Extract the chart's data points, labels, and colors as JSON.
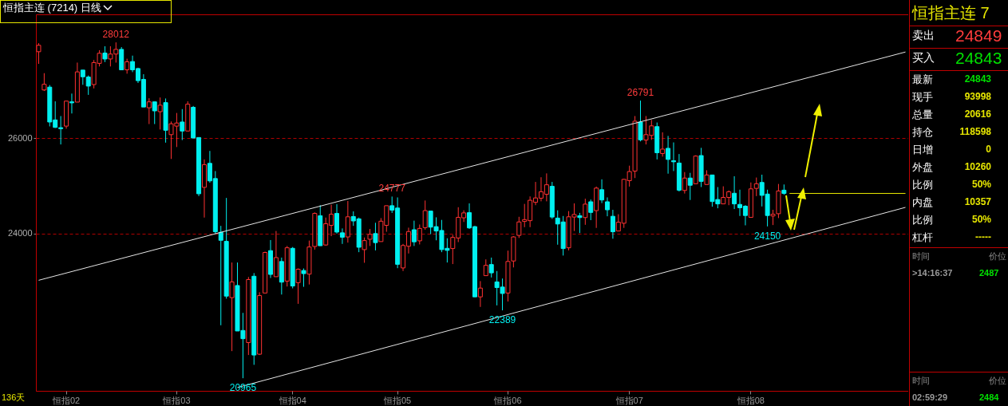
{
  "chart_data": [
    {
      "type": "candlestick",
      "title": "恒指主连 (7214) 日线",
      "annotations": [
        {
          "text": "28012",
          "y": 28012
        },
        {
          "text": "24777",
          "y": 24777
        },
        {
          "text": "26791",
          "y": 26791
        },
        {
          "text": "22389",
          "y": 22389
        },
        {
          "text": "24150",
          "y": 24150
        },
        {
          "text": "20965",
          "y": 20965
        },
        "136天"
      ],
      "categories": [
        null,
        null,
        null,
        null,
        null,
        "恒指02",
        null,
        null,
        null,
        null,
        null,
        null,
        null,
        null,
        null,
        null,
        null,
        null,
        null,
        null,
        null,
        null,
        null,
        null,
        null,
        "恒指03",
        null,
        null,
        null,
        null,
        null,
        null,
        null,
        null,
        null,
        null,
        null,
        null,
        null,
        null,
        null,
        null,
        null,
        null,
        null,
        null,
        "恒指04",
        null,
        null,
        null,
        null,
        null,
        null,
        null,
        null,
        null,
        null,
        null,
        null,
        null,
        null,
        null,
        null,
        null,
        null,
        "恒指05",
        null,
        null,
        null,
        null,
        null,
        null,
        null,
        null,
        null,
        null,
        null,
        null,
        null,
        null,
        null,
        null,
        null,
        null,
        null,
        "恒指06",
        null,
        null,
        null,
        null,
        null,
        null,
        null,
        null,
        null,
        null,
        null,
        null,
        null,
        null,
        null,
        null,
        null,
        null,
        null,
        null,
        null,
        "恒指07",
        null,
        null,
        null,
        null,
        null,
        null,
        null,
        null,
        null,
        null,
        null,
        null,
        null,
        null,
        null,
        null,
        null,
        null,
        null,
        null,
        null,
        "恒指08",
        null,
        null,
        null,
        null,
        null,
        null,
        null,
        null,
        null,
        null,
        null,
        null,
        null,
        null,
        null,
        null,
        null,
        null,
        null,
        null,
        null,
        null,
        null,
        null,
        null,
        null,
        null,
        null
      ],
      "ylim": [
        20700,
        28600
      ],
      "yticks": [
        24000,
        26000
      ],
      "grid": "y",
      "ref_lines": [
        {
          "axis": "y",
          "value": 24843,
          "color": "#e8e800"
        }
      ],
      "series": [
        {
          "type": "candlestick",
          "ohlc": [
            [
              27816,
              27995,
              27561,
              27951
            ],
            [
              27014,
              27366,
              26992,
              27133
            ],
            [
              27073,
              27117,
              26249,
              26341
            ],
            [
              26385,
              26775,
              26217,
              26228
            ],
            [
              26222,
              26466,
              25870,
              26201
            ],
            [
              26255,
              26780,
              26201,
              26780
            ],
            [
              26764,
              26938,
              26520,
              26743
            ],
            [
              26759,
              27588,
              26759,
              27393
            ],
            [
              27431,
              27431,
              27122,
              27290
            ],
            [
              27285,
              27317,
              26911,
              27095
            ],
            [
              27127,
              27642,
              27046,
              27588
            ],
            [
              27572,
              27848,
              27507,
              27783
            ],
            [
              27789,
              27930,
              27599,
              27664
            ],
            [
              27664,
              27930,
              27507,
              27767
            ],
            [
              27767,
              28012,
              27588,
              27865
            ],
            [
              27865,
              27913,
              27436,
              27436
            ],
            [
              27436,
              27669,
              27355,
              27604
            ],
            [
              27610,
              27734,
              27388,
              27436
            ],
            [
              27463,
              27480,
              27160,
              27209
            ],
            [
              27236,
              27344,
              26656,
              26656
            ],
            [
              26640,
              26840,
              26298,
              26764
            ],
            [
              26764,
              26764,
              26298,
              26575
            ],
            [
              26558,
              26856,
              26184,
              26694
            ],
            [
              26748,
              26835,
              25908,
              26168
            ],
            [
              26076,
              26352,
              25566,
              26304
            ],
            [
              26255,
              26531,
              25816,
              26320
            ],
            [
              26341,
              26612,
              25962,
              26152
            ],
            [
              26152,
              26775,
              26152,
              26715
            ],
            [
              26650,
              26678,
              26005,
              26005
            ],
            [
              26016,
              26016,
              24786,
              24835
            ],
            [
              24970,
              25556,
              24336,
              25447
            ],
            [
              25474,
              25734,
              25068,
              25106
            ],
            [
              25155,
              25312,
              23995,
              24038
            ],
            [
              24027,
              24162,
              22076,
              23859
            ],
            [
              23837,
              24748,
              22634,
              22688
            ],
            [
              22656,
              23393,
              21534,
              22986
            ],
            [
              22910,
              23393,
              21956,
              21956
            ],
            [
              21967,
              22336,
              20965,
              21794
            ],
            [
              21713,
              23089,
              21452,
              23035
            ],
            [
              23105,
              23171,
              21246,
              21452
            ],
            [
              21469,
              22769,
              21452,
              22699
            ],
            [
              22753,
              23620,
              22753,
              23604
            ],
            [
              23642,
              23864,
              23068,
              23143
            ],
            [
              23095,
              24054,
              23095,
              23496
            ],
            [
              23414,
              23496,
              22721,
              22981
            ],
            [
              23003,
              23740,
              22889,
              23702
            ],
            [
              23691,
              23718,
              22851,
              22900
            ],
            [
              22970,
              23268,
              22526,
              23252
            ],
            [
              23225,
              23268,
              22883,
              23160
            ],
            [
              23149,
              23853,
              22932,
              23718
            ],
            [
              23729,
              24444,
              23664,
              24423
            ],
            [
              24374,
              24596,
              23745,
              23745
            ],
            [
              23761,
              24336,
              23745,
              24206
            ],
            [
              24173,
              24607,
              23946,
              24406
            ],
            [
              24423,
              24618,
              24000,
              24032
            ],
            [
              24016,
              24108,
              23783,
              23924
            ],
            [
              23929,
              24683,
              23810,
              24352
            ],
            [
              24358,
              24466,
              24162,
              24265
            ],
            [
              24309,
              24336,
              23610,
              23713
            ],
            [
              23664,
              23918,
              23387,
              23853
            ],
            [
              23881,
              24097,
              23740,
              23984
            ],
            [
              24000,
              24227,
              23647,
              23810
            ],
            [
              23832,
              24325,
              23832,
              24260
            ],
            [
              24173,
              24585,
              24038,
              24585
            ],
            [
              24585,
              24777,
              24433,
              24493
            ],
            [
              24536,
              24759,
              23274,
              23355
            ],
            [
              23279,
              23783,
              23214,
              23750
            ],
            [
              23734,
              24124,
              23582,
              24043
            ],
            [
              24081,
              24271,
              23740,
              23827
            ],
            [
              23848,
              24190,
              23772,
              24108
            ],
            [
              24125,
              24694,
              24081,
              24482
            ],
            [
              24472,
              24472,
              23989,
              24135
            ],
            [
              24146,
              24341,
              23859,
              24054
            ],
            [
              24065,
              24287,
              23610,
              23664
            ],
            [
              23691,
              23902,
              23393,
              23648
            ],
            [
              23686,
              23973,
              23360,
              23919
            ],
            [
              23908,
              24553,
              23821,
              24341
            ],
            [
              24331,
              24488,
              24244,
              24434
            ],
            [
              24439,
              24634,
              24098,
              24119
            ],
            [
              24146,
              24163,
              22672,
              22672
            ],
            [
              22672,
              23003,
              22461,
              22856
            ],
            [
              23117,
              23458,
              23117,
              23333
            ],
            [
              23350,
              23496,
              23079,
              23176
            ],
            [
              22986,
              23214,
              22493,
              22867
            ],
            [
              22878,
              23057,
              22389,
              22743
            ],
            [
              22753,
              23642,
              22575,
              23415
            ],
            [
              23425,
              23946,
              23290,
              23930
            ],
            [
              23962,
              24352,
              23908,
              24244
            ],
            [
              24255,
              24623,
              24135,
              24293
            ],
            [
              24271,
              24780,
              24135,
              24699
            ],
            [
              24656,
              25084,
              24596,
              24748
            ],
            [
              24743,
              25182,
              24677,
              24878
            ],
            [
              24824,
              25263,
              24677,
              25024
            ],
            [
              24992,
              25084,
              24309,
              24347
            ],
            [
              24325,
              24488,
              23767,
              24201
            ],
            [
              24244,
              24369,
              23539,
              23686
            ],
            [
              23702,
              24472,
              23648,
              24352
            ],
            [
              24347,
              24634,
              24054,
              24401
            ],
            [
              24374,
              24434,
              24011,
              24336
            ],
            [
              24336,
              24732,
              24184,
              24618
            ],
            [
              24667,
              24715,
              24282,
              24444
            ],
            [
              24482,
              24986,
              24119,
              24954
            ],
            [
              24921,
              25138,
              24640,
              24705
            ],
            [
              24667,
              24759,
              24363,
              24499
            ],
            [
              24363,
              24499,
              23892,
              24038
            ],
            [
              24054,
              24406,
              24054,
              24238
            ],
            [
              24217,
              25149,
              24119,
              25138
            ],
            [
              25111,
              25425,
              24986,
              25301
            ],
            [
              25312,
              26466,
              25165,
              26358
            ],
            [
              26341,
              26791,
              25935,
              25967
            ],
            [
              25962,
              26466,
              25870,
              26076
            ],
            [
              26060,
              26385,
              25967,
              26260
            ],
            [
              26244,
              26331,
              25556,
              25696
            ],
            [
              25680,
              26125,
              25615,
              25772
            ],
            [
              25789,
              26049,
              25257,
              25556
            ],
            [
              25528,
              25913,
              25312,
              25507
            ],
            [
              25480,
              25669,
              24883,
              24911
            ],
            [
              24905,
              25290,
              24840,
              25165
            ],
            [
              25165,
              25274,
              24705,
              25014
            ],
            [
              25046,
              25642,
              25046,
              25626
            ],
            [
              25637,
              25799,
              24976,
              25095
            ],
            [
              25030,
              25328,
              25030,
              25230
            ],
            [
              25230,
              25230,
              24564,
              24672
            ],
            [
              24715,
              24976,
              24531,
              24623
            ],
            [
              24623,
              24992,
              24623,
              24759
            ],
            [
              24759,
              24905,
              24596,
              24878
            ],
            [
              24846,
              25203,
              24515,
              24623
            ],
            [
              24612,
              24921,
              24369,
              24542
            ],
            [
              24575,
              24596,
              24173,
              24379
            ],
            [
              24341,
              25073,
              24341,
              24938
            ],
            [
              24948,
              25176,
              24786,
              25046
            ],
            [
              25073,
              25236,
              24569,
              24802
            ],
            [
              24829,
              24921,
              24150,
              24379
            ],
            [
              24369,
              24499,
              24179,
              24406
            ],
            [
              24417,
              25041,
              24325,
              24894
            ],
            [
              24911,
              25030,
              24813,
              24843
            ],
            null,
            null,
            null,
            null,
            null,
            null,
            null,
            null,
            null,
            null,
            null,
            null,
            null,
            null,
            null,
            null,
            null,
            null,
            null,
            null,
            null,
            null
          ],
          "colors": [
            "#ff3232",
            "#ff3232",
            "#00f0f0",
            "#00f0f0",
            "#00f0f0",
            "#ff3232",
            "#00f0f0",
            "#ff3232",
            "#00f0f0",
            "#00f0f0",
            "#ff3232",
            "#ff3232",
            "#00f0f0",
            "#ff3232",
            "#ff3232",
            "#00f0f0",
            "#ff3232",
            "#00f0f0",
            "#00f0f0",
            "#00f0f0",
            "#ff3232",
            "#00f0f0",
            "#ff3232",
            "#00f0f0",
            "#ff3232",
            "#ff3232",
            "#00f0f0",
            "#ff3232",
            "#00f0f0",
            "#00f0f0",
            "#ff3232",
            "#00f0f0",
            "#00f0f0",
            "#00f0f0",
            "#00f0f0",
            "#ff3232",
            "#00f0f0",
            "#00f0f0",
            "#ff3232",
            "#00f0f0",
            "#ff3232",
            "#ff3232",
            "#00f0f0",
            "#ff3232",
            "#00f0f0",
            "#ff3232",
            "#00f0f0",
            "#ff3232",
            "#00f0f0",
            "#ff3232",
            "#ff3232",
            "#00f0f0",
            "#ff3232",
            "#ff3232",
            "#00f0f0",
            "#00f0f0",
            "#ff3232",
            "#00f0f0",
            "#00f0f0",
            "#ff3232",
            "#ff3232",
            "#00f0f0",
            "#ff3232",
            "#ff3232",
            "#00f0f0",
            "#00f0f0",
            "#ff3232",
            "#ff3232",
            "#00f0f0",
            "#ff3232",
            "#ff3232",
            "#00f0f0",
            "#00f0f0",
            "#00f0f0",
            "#00f0f0",
            "#ff3232",
            "#ff3232",
            "#ff3232",
            "#00f0f0",
            "#00f0f0",
            "#ff3232",
            "#ff3232",
            "#00f0f0",
            "#00f0f0",
            "#00f0f0",
            "#ff3232",
            "#ff3232",
            "#ff3232",
            "#ff3232",
            "#ff3232",
            "#ff3232",
            "#ff3232",
            "#ff3232",
            "#00f0f0",
            "#00f0f0",
            "#00f0f0",
            "#ff3232",
            "#ff3232",
            "#00f0f0",
            "#ff3232",
            "#00f0f0",
            "#ff3232",
            "#00f0f0",
            "#00f0f0",
            "#00f0f0",
            "#ff3232",
            "#ff3232",
            "#ff3232",
            "#ff3232",
            "#00f0f0",
            "#ff3232",
            "#ff3232",
            "#00f0f0",
            "#ff3232",
            "#00f0f0",
            "#00f0f0",
            "#00f0f0",
            "#ff3232",
            "#00f0f0",
            "#ff3232",
            "#00f0f0",
            "#ff3232",
            "#00f0f0",
            "#00f0f0",
            "#ff3232",
            "#ff3232",
            "#00f0f0",
            "#00f0f0",
            "#00f0f0",
            "#ff3232",
            "#ff3232",
            "#00f0f0",
            "#00f0f0",
            "#ff3232",
            "#ff3232",
            "#00f0f0",
            null,
            null,
            null,
            null,
            null,
            null,
            null,
            null,
            null,
            null,
            null,
            null,
            null,
            null,
            null,
            null,
            null,
            null,
            null,
            null,
            null,
            null
          ]
        },
        {
          "type": "line",
          "values": [
            23020,
            null,
            null,
            null,
            null,
            null,
            null,
            null,
            null,
            null,
            null,
            null,
            null,
            null,
            null,
            null,
            null,
            null,
            null,
            null,
            null,
            null,
            null,
            null,
            null,
            null,
            null,
            null,
            null,
            null,
            null,
            null,
            null,
            null,
            null,
            null,
            null,
            null,
            null,
            null,
            null,
            null,
            null,
            null,
            null,
            null,
            null,
            null,
            null,
            null,
            null,
            null,
            null,
            null,
            null,
            null,
            null,
            null,
            null,
            null,
            null,
            null,
            null,
            null,
            null,
            null,
            null,
            null,
            null,
            null,
            null,
            null,
            null,
            null,
            null,
            null,
            null,
            null,
            null,
            null,
            null,
            null,
            null,
            null,
            null,
            null,
            null,
            null,
            null,
            null,
            null,
            null,
            null,
            null,
            null,
            null,
            null,
            null,
            null,
            null,
            null,
            null,
            null,
            null,
            null,
            null,
            null,
            null,
            null,
            null,
            null,
            null,
            null,
            null,
            null,
            null,
            null,
            null,
            null,
            null,
            null,
            null,
            null,
            null,
            null,
            null,
            null,
            null,
            null,
            null,
            null,
            null,
            null,
            null,
            null,
            null,
            null,
            null,
            null,
            null,
            null,
            null,
            null,
            null,
            null,
            null,
            null,
            null,
            null,
            null,
            null,
            null,
            null,
            null,
            null,
            null,
            null,
            27810
          ],
          "color": "#e6e6e6"
        },
        {
          "type": "line",
          "values": [
            null,
            null,
            null,
            null,
            null,
            null,
            null,
            null,
            null,
            null,
            null,
            null,
            null,
            null,
            null,
            null,
            null,
            null,
            null,
            null,
            null,
            null,
            null,
            null,
            null,
            null,
            null,
            null,
            null,
            null,
            null,
            null,
            null,
            null,
            null,
            null,
            20770,
            null,
            null,
            null,
            null,
            null,
            null,
            null,
            null,
            null,
            null,
            null,
            null,
            null,
            null,
            null,
            null,
            null,
            null,
            null,
            null,
            null,
            null,
            null,
            null,
            null,
            null,
            null,
            null,
            null,
            null,
            null,
            null,
            null,
            null,
            null,
            null,
            null,
            null,
            null,
            null,
            null,
            null,
            null,
            null,
            null,
            null,
            null,
            null,
            null,
            null,
            null,
            null,
            null,
            null,
            null,
            null,
            null,
            null,
            null,
            null,
            null,
            null,
            null,
            null,
            null,
            null,
            null,
            null,
            null,
            null,
            null,
            null,
            null,
            null,
            null,
            null,
            null,
            null,
            null,
            null,
            null,
            null,
            null,
            null,
            null,
            null,
            null,
            null,
            null,
            null,
            null,
            null,
            null,
            null,
            null,
            null,
            null,
            null,
            null,
            null,
            null,
            null,
            null,
            null,
            null,
            null,
            null,
            null,
            null,
            null,
            null,
            null,
            null,
            null,
            null,
            null,
            null,
            null,
            null,
            null,
            24550
          ],
          "color": "#e6e6e6"
        }
      ]
    },
    {
      "type": "other",
      "title": "恒指主连 7",
      "categories": [
        "卖出",
        "买入",
        "最新",
        "现手",
        "总量",
        "持仓",
        "日增",
        "外盘",
        "比例",
        "内盘",
        "比例",
        "杠杆"
      ],
      "value_labels": [
        "24849",
        "24843",
        "24843",
        "93998",
        "20616",
        "118598",
        "0",
        "10260",
        "50%",
        "10357",
        "50%",
        "-----"
      ],
      "annotations": [
        "时间",
        "价位",
        ">14:16:37",
        "2487",
        "时间",
        "价位",
        "02:59:29",
        "2484"
      ]
    }
  ]
}
